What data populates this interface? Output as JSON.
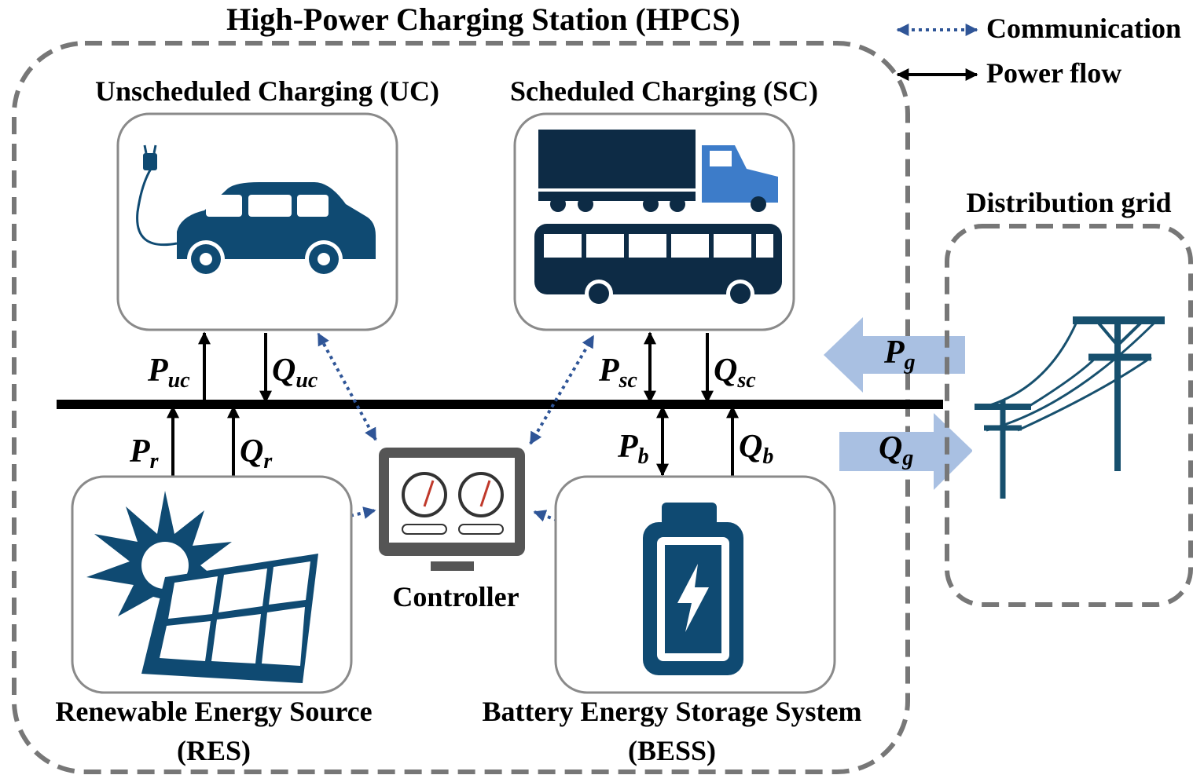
{
  "title": "High-Power Charging Station (HPCS)",
  "legend": {
    "communication": "Communication",
    "power_flow": "Power flow"
  },
  "nodes": {
    "uc": {
      "label": "Unscheduled Charging (UC)"
    },
    "sc": {
      "label": "Scheduled Charging (SC)"
    },
    "res": {
      "label": [
        "Renewable Energy Source",
        "(RES)"
      ]
    },
    "bess": {
      "label": [
        "Battery Energy Storage System",
        "(BESS)"
      ]
    },
    "controller": {
      "label": "Controller"
    },
    "grid": {
      "label": "Distribution grid"
    }
  },
  "flows": {
    "p_uc": {
      "symbol": "P",
      "subscript": "uc"
    },
    "q_uc": {
      "symbol": "Q",
      "subscript": "uc"
    },
    "p_sc": {
      "symbol": "P",
      "subscript": "sc"
    },
    "q_sc": {
      "symbol": "Q",
      "subscript": "sc"
    },
    "p_r": {
      "symbol": "P",
      "subscript": "r"
    },
    "q_r": {
      "symbol": "Q",
      "subscript": "r"
    },
    "p_b": {
      "symbol": "P",
      "subscript": "b"
    },
    "q_b": {
      "symbol": "Q",
      "subscript": "b"
    },
    "p_g": {
      "symbol": "P",
      "subscript": "g"
    },
    "q_g": {
      "symbol": "Q",
      "subscript": "g"
    }
  }
}
